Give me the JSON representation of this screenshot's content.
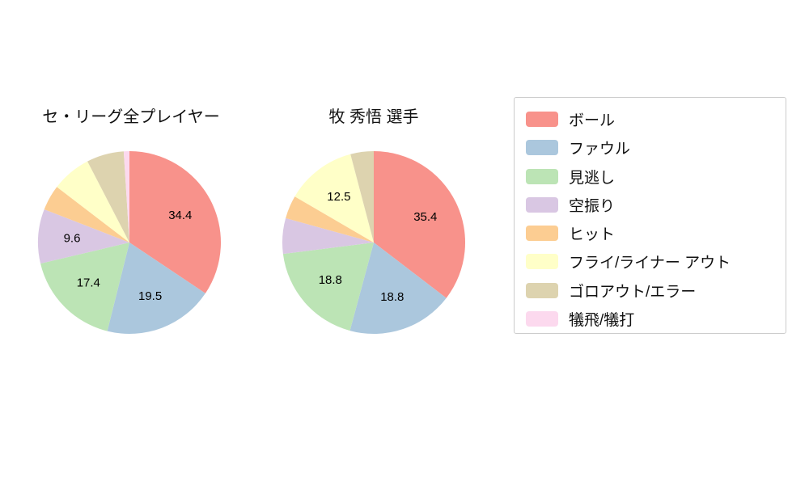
{
  "colors": [
    "#f8928b",
    "#abc7dd",
    "#bce4b5",
    "#d9c7e3",
    "#fccd92",
    "#ffffc8",
    "#ddd3af",
    "#fcd9ee"
  ],
  "chart_data": [
    {
      "type": "pie",
      "title": "セ・リーグ全プレイヤー",
      "categories": [
        "ボール",
        "ファウル",
        "見逃し",
        "空振り",
        "ヒット",
        "フライ/ライナー アウト",
        "ゴロアウト/エラー",
        "犠飛/犠打"
      ],
      "values": [
        34.4,
        19.5,
        17.4,
        9.6,
        4.5,
        7.0,
        6.6,
        1.0
      ],
      "value_labels": [
        "34.4",
        "19.5",
        "17.4",
        "9.6",
        "",
        "",
        "",
        ""
      ],
      "start_angle_deg": 90,
      "direction": "clockwise",
      "legend_position": "right"
    },
    {
      "type": "pie",
      "title": "牧 秀悟 選手",
      "categories": [
        "ボール",
        "ファウル",
        "見逃し",
        "空振り",
        "ヒット",
        "フライ/ライナー アウト",
        "ゴロアウト/エラー",
        "犠飛/犠打"
      ],
      "values": [
        35.4,
        18.8,
        18.8,
        6.3,
        4.1,
        12.5,
        4.1,
        0.0
      ],
      "value_labels": [
        "35.4",
        "18.8",
        "18.8",
        "",
        "",
        "12.5",
        "",
        ""
      ],
      "start_angle_deg": 90,
      "direction": "clockwise",
      "legend_position": "right"
    }
  ],
  "legend": {
    "items": [
      "ボール",
      "ファウル",
      "見逃し",
      "空振り",
      "ヒット",
      "フライ/ライナー アウト",
      "ゴロアウト/エラー",
      "犠飛/犠打"
    ]
  }
}
